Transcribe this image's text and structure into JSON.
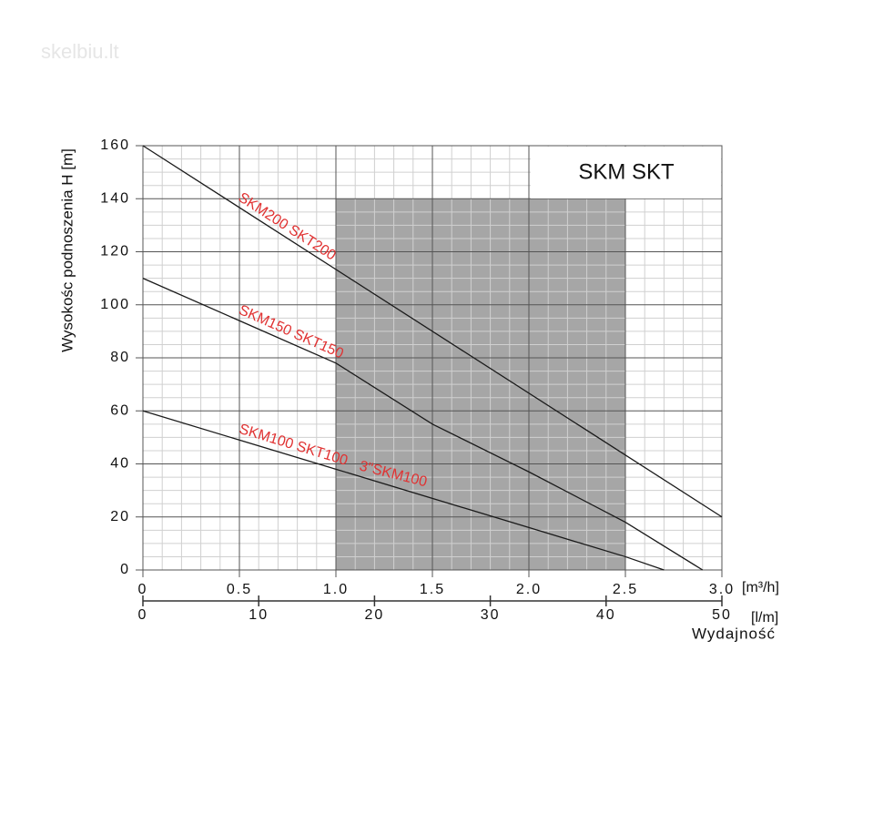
{
  "watermark": "skelbiu.lt",
  "chart_data": {
    "type": "line",
    "title": "SKM SKT",
    "ylabel": "Wysokośc podnoszenia H [m]",
    "xlabel": "Wydajność",
    "x_unit": "[m³/h]",
    "x2_unit": "[l/m]",
    "xlim": [
      0,
      3.0
    ],
    "xticks": [
      0,
      0.5,
      {
        "value": 1.0,
        "label": "1.0"
      },
      1.5,
      {
        "value": 2.0,
        "label": "2.0"
      },
      2.5,
      {
        "value": 3.0,
        "label": "3.0"
      }
    ],
    "x2lim": [
      0,
      50
    ],
    "x2ticks": [
      0,
      10,
      20,
      30,
      40,
      50
    ],
    "ylim": [
      0,
      160
    ],
    "yticks": [
      0,
      20,
      40,
      60,
      80,
      100,
      120,
      140,
      160
    ],
    "grid": true,
    "highlight_region": {
      "xlim": [
        1.0,
        2.5
      ],
      "ylim": [
        0,
        140
      ],
      "color": "#a6a6a6"
    },
    "label_color": "#e03232",
    "series": [
      {
        "name": "SKM200 SKT200",
        "color": "#1a1a1a",
        "x": [
          0,
          3.0
        ],
        "values": [
          160,
          20
        ]
      },
      {
        "name": "SKM150 SKT150",
        "color": "#1a1a1a",
        "x": [
          0,
          1,
          1.5,
          2,
          2.5,
          2.9
        ],
        "values": [
          110,
          78,
          55,
          37,
          18,
          0
        ]
      },
      {
        "name": "SKM100 SKT100",
        "color": "#1a1a1a",
        "x": [
          0,
          1,
          2,
          2.5,
          2.7
        ],
        "values": [
          60,
          38,
          16,
          5,
          0
        ]
      }
    ],
    "annotations": [
      "3\"SKM100"
    ]
  }
}
